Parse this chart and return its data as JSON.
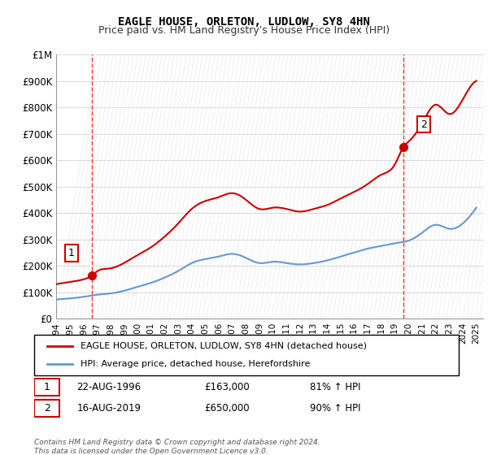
{
  "title": "EAGLE HOUSE, ORLETON, LUDLOW, SY8 4HN",
  "subtitle": "Price paid vs. HM Land Registry's House Price Index (HPI)",
  "xlabel": "",
  "ylabel": "",
  "ylim": [
    0,
    1000000
  ],
  "yticks": [
    0,
    100000,
    200000,
    300000,
    400000,
    500000,
    600000,
    700000,
    800000,
    900000,
    1000000
  ],
  "ytick_labels": [
    "£0",
    "£100K",
    "£200K",
    "£300K",
    "£400K",
    "£500K",
    "£600K",
    "£700K",
    "£800K",
    "£900K",
    "£1M"
  ],
  "xlim_start": 1994.0,
  "xlim_end": 2025.5,
  "xticks": [
    1994,
    1995,
    1996,
    1997,
    1998,
    1999,
    2000,
    2001,
    2002,
    2003,
    2004,
    2005,
    2006,
    2007,
    2008,
    2009,
    2010,
    2011,
    2012,
    2013,
    2014,
    2015,
    2016,
    2017,
    2018,
    2019,
    2020,
    2021,
    2022,
    2023,
    2024,
    2025
  ],
  "sale1_x": 1996.64,
  "sale1_y": 163000,
  "sale1_label": "1",
  "sale1_date": "22-AUG-1996",
  "sale1_price": "£163,000",
  "sale1_hpi": "81% ↑ HPI",
  "sale2_x": 2019.62,
  "sale2_y": 650000,
  "sale2_label": "2",
  "sale2_date": "16-AUG-2019",
  "sale2_price": "£650,000",
  "sale2_hpi": "90% ↑ HPI",
  "vline1_x": 1996.64,
  "vline2_x": 2019.62,
  "red_line_color": "#cc0000",
  "blue_line_color": "#6699cc",
  "marker_color": "#cc0000",
  "vline_color": "#ff0000",
  "background_color": "#ffffff",
  "plot_bg_color": "#ffffff",
  "grid_color": "#cccccc",
  "legend_entry1": "EAGLE HOUSE, ORLETON, LUDLOW, SY8 4HN (detached house)",
  "legend_entry2": "HPI: Average price, detached house, Herefordshire",
  "footnote": "Contains HM Land Registry data © Crown copyright and database right 2024.\nThis data is licensed under the Open Government Licence v3.0.",
  "hatch_color": "#dddddd"
}
